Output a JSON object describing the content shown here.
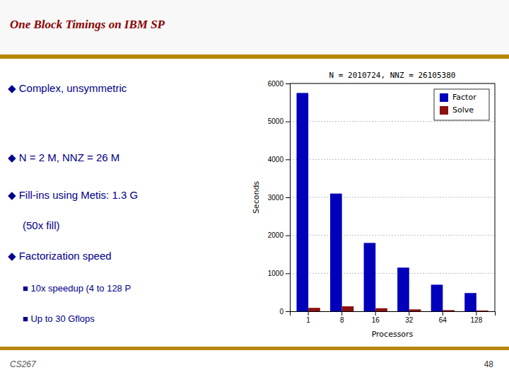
{
  "chart_data": {
    "type": "bar",
    "title": "N = 2010724, NNZ = 26105380",
    "x_label": "Processors",
    "y_label": "Seconds",
    "categories": [
      "1",
      "8",
      "16",
      "32",
      "64",
      "128"
    ],
    "series": [
      {
        "name": "Factor",
        "color": "#0000BB",
        "values": [
          5750,
          3100,
          1800,
          1150,
          700,
          480
        ]
      },
      {
        "name": "Solve",
        "color": "#8B1010",
        "values": [
          90,
          130,
          80,
          50,
          30,
          20
        ]
      }
    ],
    "ylim": [
      0,
      6000
    ],
    "yticks": [
      0,
      1000,
      2000,
      3000,
      4000,
      5000,
      6000
    ],
    "grid": true,
    "legend": "upper right",
    "annotations": [
      "One Block Timings on IBM SP",
      "◆ Complex, unsymmetric",
      "◆ N = 2 M, NNZ = 26 M",
      "◆ Fill-ins using Metis: 1.3 G",
      "(50x fill)",
      "◆ Factorization speed",
      "■ 10x speedup (4 to 128 P",
      "■ Up to 30 Gflops",
      "CS267",
      "48"
    ]
  }
}
